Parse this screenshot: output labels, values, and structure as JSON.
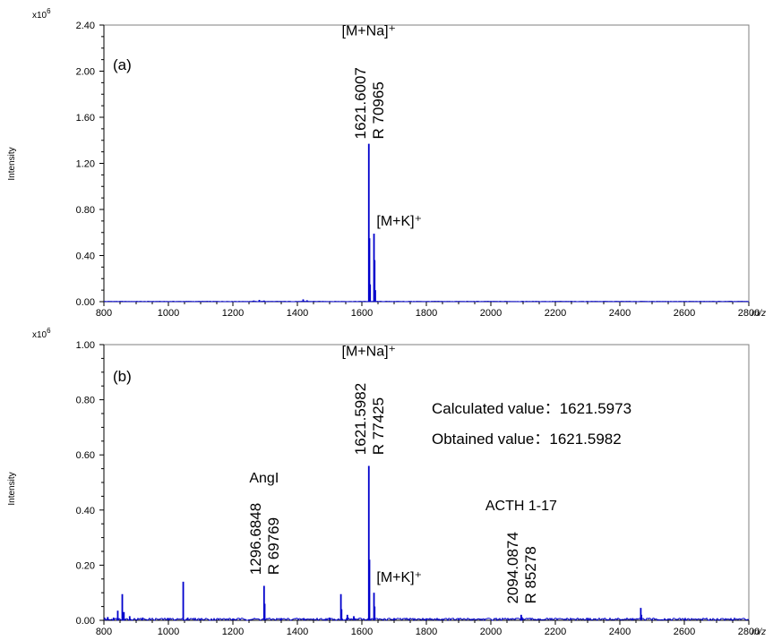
{
  "chart_data": [
    {
      "type": "line",
      "panel_label": "(a)",
      "xlabel": "m/z",
      "ylabel": "Intensity",
      "y_multiplier": "x10",
      "y_multiplier_exp": "6",
      "xlim": [
        800,
        2800
      ],
      "ylim": [
        0,
        2.4
      ],
      "x_ticks": [
        800,
        1000,
        1200,
        1400,
        1600,
        1800,
        2000,
        2200,
        2400,
        2600,
        2800
      ],
      "y_ticks": [
        "0.00",
        "0.40",
        "0.80",
        "1.20",
        "1.60",
        "2.00",
        "2.40"
      ],
      "y_tick_values": [
        0,
        0.4,
        0.8,
        1.2,
        1.6,
        2.0,
        2.4
      ],
      "peaks": [
        {
          "x": 1097,
          "y": 0.005
        },
        {
          "x": 1265,
          "y": 0.01
        },
        {
          "x": 1282,
          "y": 0.015
        },
        {
          "x": 1296.7,
          "y": 0.01
        },
        {
          "x": 1418,
          "y": 0.02
        },
        {
          "x": 1430,
          "y": 0.012
        },
        {
          "x": 1621.6,
          "y": 1.37
        },
        {
          "x": 1623.6,
          "y": 0.55
        },
        {
          "x": 1625.6,
          "y": 0.15
        },
        {
          "x": 1637.6,
          "y": 0.59
        },
        {
          "x": 1639.6,
          "y": 0.36
        },
        {
          "x": 1641.6,
          "y": 0.1
        },
        {
          "x": 1700,
          "y": 0.005
        },
        {
          "x": 1770,
          "y": 0.005
        }
      ],
      "annotations": [
        {
          "id": "mna",
          "text": "[M+Na]⁺",
          "x": 1621.6,
          "y": 2.31
        },
        {
          "id": "mk",
          "text": "[M+K]⁺",
          "x": 1640,
          "y": 0.66
        },
        {
          "id": "lbl1",
          "text": "1621.6007",
          "sub": "R 70965",
          "x": 1621.6,
          "y": 1.41
        }
      ]
    },
    {
      "type": "line",
      "panel_label": "(b)",
      "xlabel": "m/z",
      "ylabel": "Intensity",
      "y_multiplier": "x10",
      "y_multiplier_exp": "6",
      "xlim": [
        800,
        2800
      ],
      "ylim": [
        0,
        1.0
      ],
      "x_ticks": [
        800,
        1000,
        1200,
        1400,
        1600,
        1800,
        2000,
        2200,
        2400,
        2600,
        2800
      ],
      "y_ticks": [
        "0.00",
        "0.20",
        "0.40",
        "0.60",
        "0.80",
        "1.00"
      ],
      "y_tick_values": [
        0,
        0.2,
        0.4,
        0.6,
        0.8,
        1.0
      ],
      "peaks": [
        {
          "x": 812,
          "y": 0.012
        },
        {
          "x": 830,
          "y": 0.01
        },
        {
          "x": 843,
          "y": 0.035
        },
        {
          "x": 857,
          "y": 0.095
        },
        {
          "x": 862,
          "y": 0.03
        },
        {
          "x": 880,
          "y": 0.015
        },
        {
          "x": 920,
          "y": 0.01
        },
        {
          "x": 1000,
          "y": 0.008
        },
        {
          "x": 1046,
          "y": 0.14
        },
        {
          "x": 1060,
          "y": 0.01
        },
        {
          "x": 1100,
          "y": 0.006
        },
        {
          "x": 1200,
          "y": 0.005
        },
        {
          "x": 1296.7,
          "y": 0.125
        },
        {
          "x": 1298.7,
          "y": 0.06
        },
        {
          "x": 1350,
          "y": 0.008
        },
        {
          "x": 1420,
          "y": 0.008
        },
        {
          "x": 1500,
          "y": 0.01
        },
        {
          "x": 1535,
          "y": 0.095
        },
        {
          "x": 1537,
          "y": 0.04
        },
        {
          "x": 1555,
          "y": 0.02
        },
        {
          "x": 1575,
          "y": 0.015
        },
        {
          "x": 1621.6,
          "y": 0.56
        },
        {
          "x": 1623.6,
          "y": 0.22
        },
        {
          "x": 1637.6,
          "y": 0.1
        },
        {
          "x": 1639.6,
          "y": 0.05
        },
        {
          "x": 1700,
          "y": 0.008
        },
        {
          "x": 1800,
          "y": 0.006
        },
        {
          "x": 1900,
          "y": 0.005
        },
        {
          "x": 2094.1,
          "y": 0.02
        },
        {
          "x": 2096.1,
          "y": 0.012
        },
        {
          "x": 2300,
          "y": 0.005
        },
        {
          "x": 2440,
          "y": 0.008
        },
        {
          "x": 2465,
          "y": 0.045
        },
        {
          "x": 2467,
          "y": 0.02
        },
        {
          "x": 2600,
          "y": 0.005
        }
      ],
      "annotations": [
        {
          "id": "mna",
          "text": "[M+Na]⁺",
          "x": 1621.6,
          "y": 0.96
        },
        {
          "id": "mk",
          "text": "[M+K]⁺",
          "x": 1640,
          "y": 0.14
        },
        {
          "id": "angi",
          "text": "AngI",
          "x": 1296.7,
          "y": 0.5
        },
        {
          "id": "acth",
          "text": "ACTH 1-17",
          "x": 2094.1,
          "y": 0.4
        },
        {
          "id": "lbl1",
          "text": "1621.5982",
          "sub": "R 77425",
          "x": 1621.6,
          "y": 0.6
        },
        {
          "id": "lbl2",
          "text": "1296.6848",
          "sub": "R 69769",
          "x": 1296.7,
          "y": 0.165
        },
        {
          "id": "lbl3",
          "text": "2094.0874",
          "sub": "R 85278",
          "x": 2094.1,
          "y": 0.06
        }
      ],
      "info_box": {
        "calculated": "Calculated value：1621.5973",
        "obtained": "Obtained value：1621.5982"
      }
    }
  ],
  "colors": {
    "spectrum": "#0000cc",
    "axis": "#000000",
    "frame": "#7f7f7f"
  }
}
